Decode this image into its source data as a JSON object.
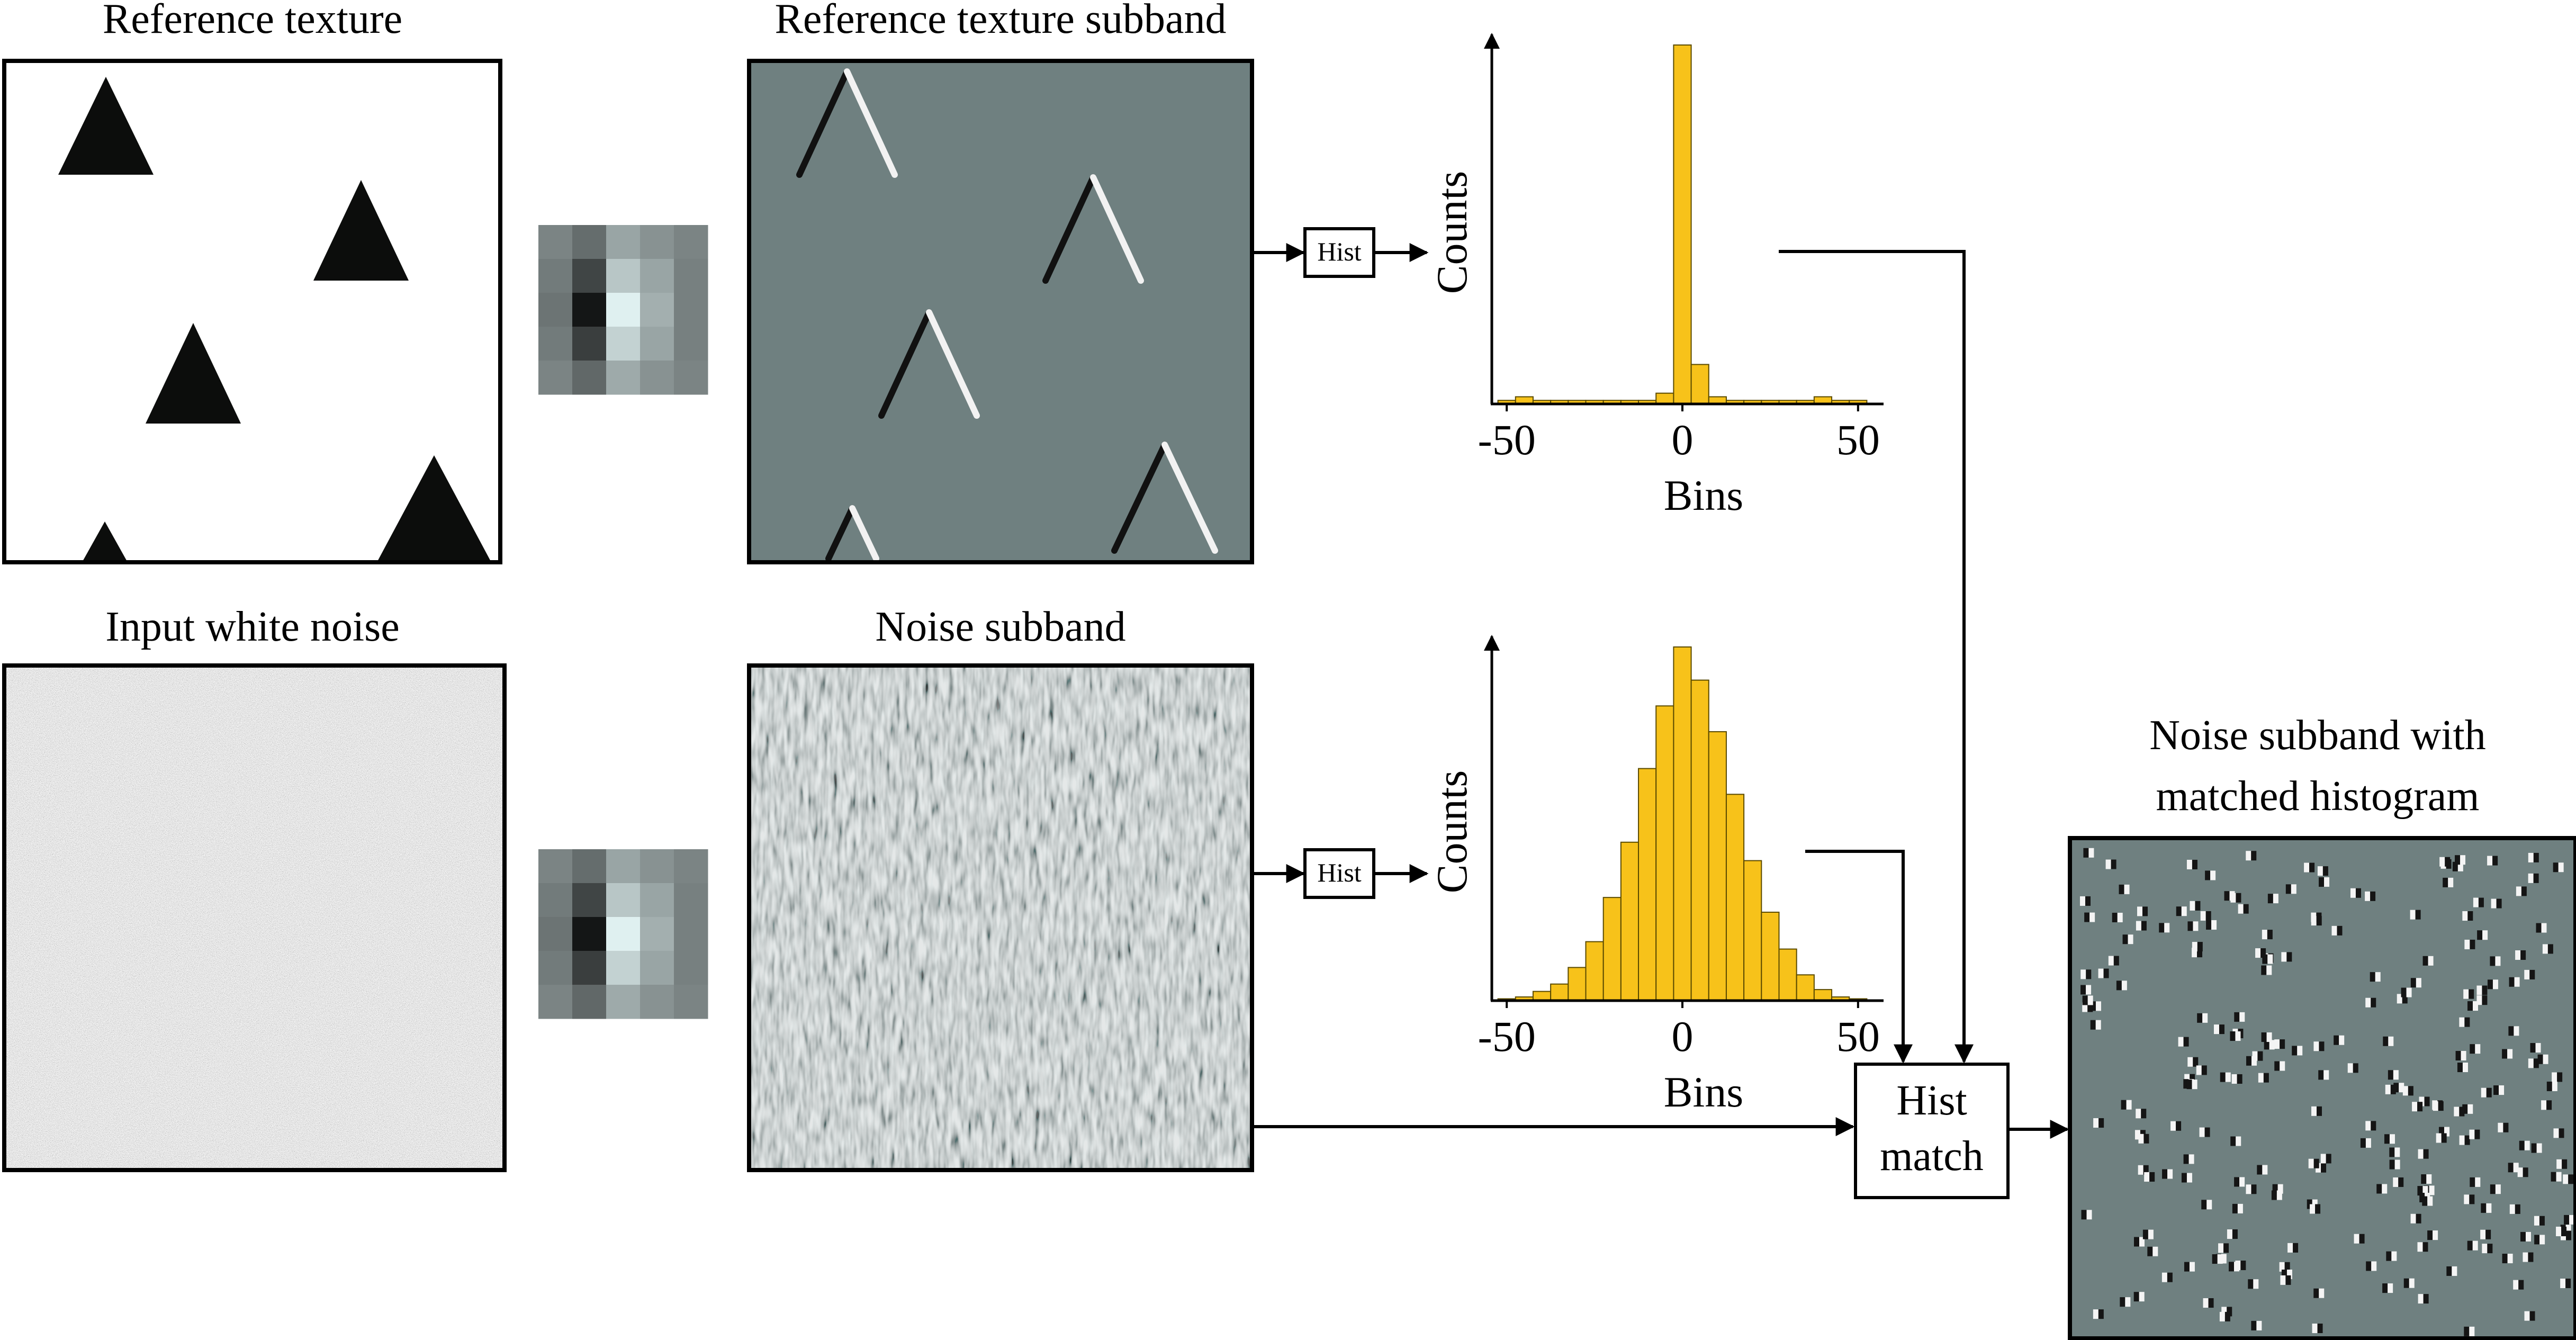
{
  "panels": {
    "reference_texture": "Reference texture",
    "reference_subband": "Reference texture subband",
    "input_noise": "Input white noise",
    "noise_subband": "Noise subband",
    "matched_line1": "Noise subband with",
    "matched_line2": "matched histogram"
  },
  "blocks": {
    "hist_top": "Hist",
    "hist_bottom": "Hist",
    "match_line1": "Hist",
    "match_line2": "match"
  },
  "colors": {
    "bar": "#f7c21a",
    "subband_gray": "#6f8080",
    "line": "#000000"
  },
  "chart_data": [
    {
      "type": "bar",
      "xlabel": "Bins",
      "ylabel": "Counts",
      "xlim": [
        -55,
        55
      ],
      "xticks": [
        "-50",
        "0",
        "50"
      ],
      "bin_width": 5,
      "x": [
        -50,
        -45,
        -40,
        -35,
        -30,
        -25,
        -20,
        -15,
        -10,
        -5,
        0,
        5,
        10,
        15,
        20,
        25,
        30,
        35,
        40,
        45,
        50
      ],
      "values": [
        1,
        2,
        1,
        1,
        1,
        1,
        1,
        1,
        1,
        3,
        100,
        11,
        2,
        1,
        1,
        1,
        1,
        1,
        2,
        1,
        1
      ]
    },
    {
      "type": "bar",
      "xlabel": "Bins",
      "ylabel": "Counts",
      "xlim": [
        -55,
        55
      ],
      "xticks": [
        "-50",
        "0",
        "50"
      ],
      "bin_width": 5,
      "x": [
        -50,
        -45,
        -40,
        -35,
        -30,
        -25,
        -20,
        -15,
        -10,
        -5,
        0,
        5,
        10,
        15,
        20,
        25,
        30,
        35,
        40,
        45,
        50
      ],
      "values": [
        0.5,
        1,
        2.5,
        4.5,
        9,
        16,
        28,
        43,
        63,
        80,
        96,
        87,
        73,
        56,
        38,
        24,
        14,
        7,
        3,
        1,
        0.5
      ]
    }
  ]
}
